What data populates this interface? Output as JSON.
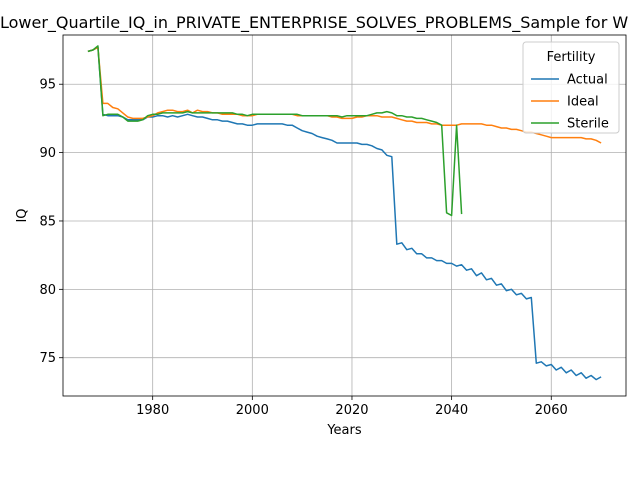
{
  "chart_data": {
    "type": "line",
    "title": "Lower_Quartile_IQ_in_PRIVATE_ENTERPRISE_SOLVES_PROBLEMS_Sample for W",
    "xlabel": "Years",
    "ylabel": "IQ",
    "xlim": [
      1962,
      2075
    ],
    "ylim": [
      72.2,
      98.6
    ],
    "xticks": [
      1980,
      2000,
      2020,
      2040,
      2060
    ],
    "yticks": [
      75,
      80,
      85,
      90,
      95
    ],
    "grid": true,
    "legend": {
      "title": "Fertility",
      "position": "top-right"
    },
    "series": [
      {
        "name": "Actual",
        "color": "#1f77b4",
        "x": [
          1967,
          1968,
          1969,
          1970,
          1971,
          1972,
          1973,
          1974,
          1975,
          1976,
          1977,
          1978,
          1979,
          1980,
          1981,
          1982,
          1983,
          1984,
          1985,
          1986,
          1987,
          1988,
          1989,
          1990,
          1991,
          1992,
          1993,
          1994,
          1995,
          1996,
          1997,
          1998,
          1999,
          2000,
          2001,
          2002,
          2003,
          2004,
          2005,
          2006,
          2007,
          2008,
          2009,
          2010,
          2011,
          2012,
          2013,
          2014,
          2015,
          2016,
          2017,
          2018,
          2019,
          2020,
          2021,
          2022,
          2023,
          2024,
          2025,
          2026,
          2027,
          2028,
          2029,
          2030,
          2031,
          2032,
          2033,
          2034,
          2035,
          2036,
          2037,
          2038,
          2039,
          2040,
          2041,
          2042,
          2043,
          2044,
          2045,
          2046,
          2047,
          2048,
          2049,
          2050,
          2051,
          2052,
          2053,
          2054,
          2055,
          2056,
          2057,
          2058,
          2059,
          2060,
          2061,
          2062,
          2063,
          2064,
          2065,
          2066,
          2067,
          2068,
          2069,
          2070
        ],
        "y": [
          97.4,
          97.5,
          97.7,
          92.8,
          92.7,
          92.7,
          92.7,
          92.6,
          92.4,
          92.4,
          92.4,
          92.4,
          92.6,
          92.6,
          92.7,
          92.7,
          92.6,
          92.7,
          92.6,
          92.7,
          92.8,
          92.7,
          92.6,
          92.6,
          92.5,
          92.4,
          92.4,
          92.3,
          92.3,
          92.2,
          92.1,
          92.1,
          92.0,
          92.0,
          92.1,
          92.1,
          92.1,
          92.1,
          92.1,
          92.1,
          92.0,
          92.0,
          91.8,
          91.6,
          91.5,
          91.4,
          91.2,
          91.1,
          91.0,
          90.9,
          90.7,
          90.7,
          90.7,
          90.7,
          90.7,
          90.6,
          90.6,
          90.5,
          90.3,
          90.2,
          89.8,
          89.7,
          83.3,
          83.4,
          82.9,
          83.0,
          82.6,
          82.6,
          82.3,
          82.3,
          82.1,
          82.1,
          81.9,
          81.9,
          81.7,
          81.8,
          81.4,
          81.5,
          81.0,
          81.2,
          80.7,
          80.8,
          80.3,
          80.4,
          79.9,
          80.0,
          79.6,
          79.7,
          79.3,
          79.4,
          74.6,
          74.7,
          74.4,
          74.5,
          74.1,
          74.3,
          73.9,
          74.1,
          73.7,
          73.9,
          73.5,
          73.7,
          73.4,
          73.6
        ]
      },
      {
        "name": "Ideal",
        "color": "#ff7f0e",
        "x": [
          1967,
          1968,
          1969,
          1970,
          1971,
          1972,
          1973,
          1974,
          1975,
          1976,
          1977,
          1978,
          1979,
          1980,
          1981,
          1982,
          1983,
          1984,
          1985,
          1986,
          1987,
          1988,
          1989,
          1990,
          1991,
          1992,
          1993,
          1994,
          1995,
          1996,
          1997,
          1998,
          1999,
          2000,
          2001,
          2002,
          2003,
          2004,
          2005,
          2006,
          2007,
          2008,
          2009,
          2010,
          2011,
          2012,
          2013,
          2014,
          2015,
          2016,
          2017,
          2018,
          2019,
          2020,
          2021,
          2022,
          2023,
          2024,
          2025,
          2026,
          2027,
          2028,
          2029,
          2030,
          2031,
          2032,
          2033,
          2034,
          2035,
          2036,
          2037,
          2038,
          2039,
          2040,
          2041,
          2042,
          2043,
          2044,
          2045,
          2046,
          2047,
          2048,
          2049,
          2050,
          2051,
          2052,
          2053,
          2054,
          2055,
          2056,
          2057,
          2058,
          2059,
          2060,
          2061,
          2062,
          2063,
          2064,
          2065,
          2066,
          2067,
          2068,
          2069,
          2070
        ],
        "y": [
          97.4,
          97.5,
          97.7,
          93.6,
          93.6,
          93.3,
          93.2,
          92.9,
          92.6,
          92.5,
          92.5,
          92.5,
          92.6,
          92.7,
          92.9,
          93.0,
          93.1,
          93.1,
          93.0,
          93.0,
          93.1,
          92.9,
          93.1,
          93.0,
          93.0,
          92.9,
          92.9,
          92.8,
          92.8,
          92.8,
          92.8,
          92.7,
          92.7,
          92.7,
          92.8,
          92.8,
          92.8,
          92.8,
          92.8,
          92.8,
          92.8,
          92.8,
          92.7,
          92.7,
          92.7,
          92.7,
          92.7,
          92.7,
          92.7,
          92.6,
          92.6,
          92.5,
          92.5,
          92.5,
          92.6,
          92.6,
          92.7,
          92.7,
          92.7,
          92.6,
          92.6,
          92.6,
          92.5,
          92.4,
          92.3,
          92.3,
          92.2,
          92.2,
          92.2,
          92.1,
          92.1,
          92.0,
          92.0,
          92.0,
          92.0,
          92.1,
          92.1,
          92.1,
          92.1,
          92.1,
          92.0,
          92.0,
          91.9,
          91.8,
          91.8,
          91.7,
          91.7,
          91.6,
          91.5,
          91.5,
          91.4,
          91.3,
          91.2,
          91.1,
          91.1,
          91.1,
          91.1,
          91.1,
          91.1,
          91.1,
          91.0,
          91.0,
          90.9,
          90.7
        ]
      },
      {
        "name": "Sterile",
        "color": "#2ca02c",
        "x": [
          1967,
          1968,
          1969,
          1970,
          1971,
          1972,
          1973,
          1974,
          1975,
          1976,
          1977,
          1978,
          1979,
          1980,
          1981,
          1982,
          1983,
          1984,
          1985,
          1986,
          1987,
          1988,
          1989,
          1990,
          1991,
          1992,
          1993,
          1994,
          1995,
          1996,
          1997,
          1998,
          1999,
          2000,
          2001,
          2002,
          2003,
          2004,
          2005,
          2006,
          2007,
          2008,
          2009,
          2010,
          2011,
          2012,
          2013,
          2014,
          2015,
          2016,
          2017,
          2018,
          2019,
          2020,
          2021,
          2022,
          2023,
          2024,
          2025,
          2026,
          2027,
          2028,
          2029,
          2030,
          2031,
          2032,
          2033,
          2034,
          2035,
          2036,
          2037,
          2038,
          2039,
          2040,
          2041,
          2042
        ],
        "y": [
          97.4,
          97.5,
          97.8,
          92.7,
          92.8,
          92.8,
          92.8,
          92.6,
          92.3,
          92.3,
          92.3,
          92.4,
          92.7,
          92.8,
          92.8,
          92.9,
          92.9,
          92.9,
          92.9,
          92.9,
          93.0,
          92.9,
          92.9,
          92.9,
          92.9,
          92.9,
          92.9,
          92.9,
          92.9,
          92.9,
          92.8,
          92.8,
          92.7,
          92.8,
          92.8,
          92.8,
          92.8,
          92.8,
          92.8,
          92.8,
          92.8,
          92.8,
          92.8,
          92.7,
          92.7,
          92.7,
          92.7,
          92.7,
          92.7,
          92.7,
          92.7,
          92.6,
          92.7,
          92.7,
          92.7,
          92.7,
          92.7,
          92.8,
          92.9,
          92.9,
          93.0,
          92.9,
          92.7,
          92.7,
          92.6,
          92.6,
          92.5,
          92.5,
          92.4,
          92.3,
          92.2,
          92.0,
          85.6,
          85.4,
          92.0,
          85.5
        ]
      }
    ]
  }
}
